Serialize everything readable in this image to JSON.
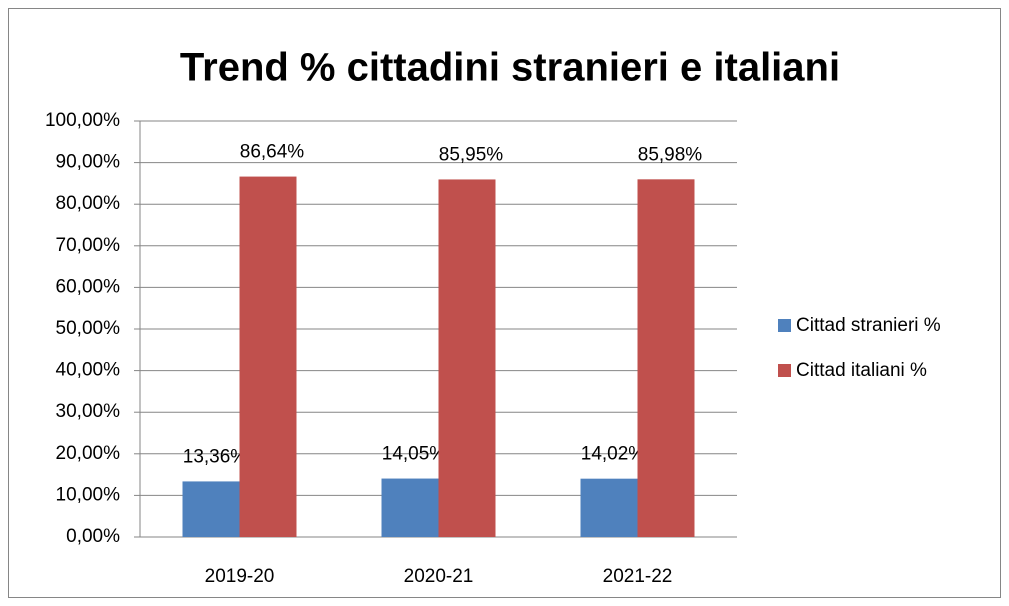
{
  "chart_data": {
    "type": "bar",
    "title": "Trend % cittadini stranieri e italiani",
    "categories": [
      "2019-20",
      "2020-21",
      "2021-22"
    ],
    "series": [
      {
        "name": "Cittad stranieri %",
        "color": "#4f81bd",
        "values": [
          13.36,
          14.05,
          14.02
        ],
        "value_labels": [
          "13,36%",
          "14,05%",
          "14,02%"
        ]
      },
      {
        "name": "Cittad italiani %",
        "color": "#c0504d",
        "values": [
          86.64,
          85.95,
          85.98
        ],
        "value_labels": [
          "86,64%",
          "85,95%",
          "85,98%"
        ]
      }
    ],
    "ylim": [
      0,
      100
    ],
    "yticks": [
      {
        "value": 0,
        "label": "0,00%"
      },
      {
        "value": 10,
        "label": "10,00%"
      },
      {
        "value": 20,
        "label": "20,00%"
      },
      {
        "value": 30,
        "label": "30,00%"
      },
      {
        "value": 40,
        "label": "40,00%"
      },
      {
        "value": 50,
        "label": "50,00%"
      },
      {
        "value": 60,
        "label": "60,00%"
      },
      {
        "value": 70,
        "label": "70,00%"
      },
      {
        "value": 80,
        "label": "80,00%"
      },
      {
        "value": 90,
        "label": "90,00%"
      },
      {
        "value": 100,
        "label": "100,00%"
      }
    ],
    "grid": true,
    "legend": "right"
  }
}
